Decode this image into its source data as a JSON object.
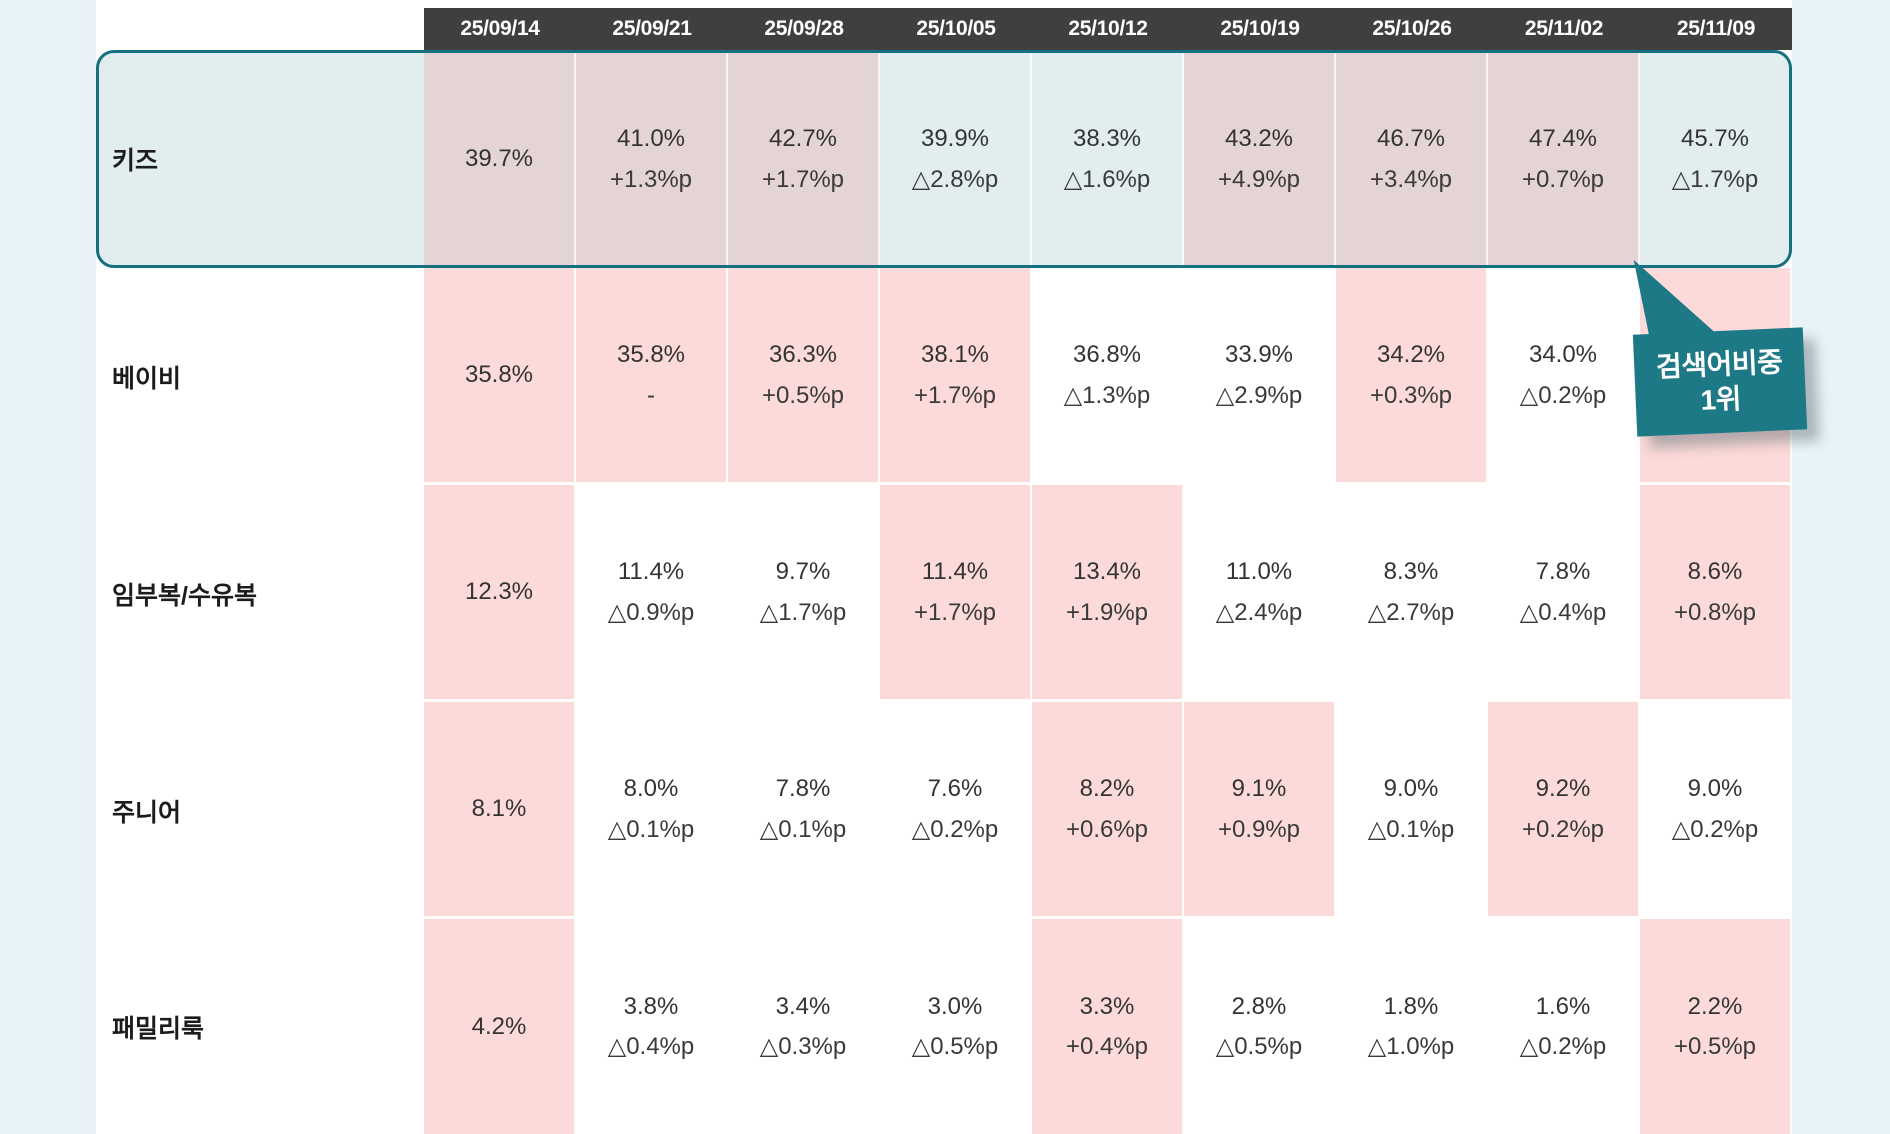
{
  "chart_data": {
    "type": "table",
    "columns": [
      "25/09/14",
      "25/09/21",
      "25/09/28",
      "25/10/05",
      "25/10/12",
      "25/10/19",
      "25/10/26",
      "25/11/02",
      "25/11/09"
    ],
    "rows": [
      {
        "label": "키즈",
        "emphasized_row": true,
        "cells": [
          {
            "value": "39.7%",
            "delta": "",
            "highlight": true
          },
          {
            "value": "41.0%",
            "delta": "+1.3%p",
            "highlight": true
          },
          {
            "value": "42.7%",
            "delta": "+1.7%p",
            "highlight": true
          },
          {
            "value": "39.9%",
            "delta": "△2.8%p",
            "highlight": false
          },
          {
            "value": "38.3%",
            "delta": "△1.6%p",
            "highlight": false
          },
          {
            "value": "43.2%",
            "delta": "+4.9%p",
            "highlight": true
          },
          {
            "value": "46.7%",
            "delta": "+3.4%p",
            "highlight": true
          },
          {
            "value": "47.4%",
            "delta": "+0.7%p",
            "highlight": true
          },
          {
            "value": "45.7%",
            "delta": "△1.7%p",
            "highlight": false
          }
        ]
      },
      {
        "label": "베이비",
        "emphasized_row": false,
        "cells": [
          {
            "value": "35.8%",
            "delta": "",
            "highlight": true
          },
          {
            "value": "35.8%",
            "delta": "-",
            "highlight": true
          },
          {
            "value": "36.3%",
            "delta": "+0.5%p",
            "highlight": true
          },
          {
            "value": "38.1%",
            "delta": "+1.7%p",
            "highlight": true
          },
          {
            "value": "36.8%",
            "delta": "△1.3%p",
            "highlight": false
          },
          {
            "value": "33.9%",
            "delta": "△2.9%p",
            "highlight": false
          },
          {
            "value": "34.2%",
            "delta": "+0.3%p",
            "highlight": true
          },
          {
            "value": "34.0%",
            "delta": "△0.2%p",
            "highlight": false
          },
          {
            "value": "",
            "delta": "",
            "highlight": true
          }
        ]
      },
      {
        "label": "임부복/수유복",
        "emphasized_row": false,
        "cells": [
          {
            "value": "12.3%",
            "delta": "",
            "highlight": true
          },
          {
            "value": "11.4%",
            "delta": "△0.9%p",
            "highlight": false
          },
          {
            "value": "9.7%",
            "delta": "△1.7%p",
            "highlight": false
          },
          {
            "value": "11.4%",
            "delta": "+1.7%p",
            "highlight": true
          },
          {
            "value": "13.4%",
            "delta": "+1.9%p",
            "highlight": true
          },
          {
            "value": "11.0%",
            "delta": "△2.4%p",
            "highlight": false
          },
          {
            "value": "8.3%",
            "delta": "△2.7%p",
            "highlight": false
          },
          {
            "value": "7.8%",
            "delta": "△0.4%p",
            "highlight": false
          },
          {
            "value": "8.6%",
            "delta": "+0.8%p",
            "highlight": true
          }
        ]
      },
      {
        "label": "주니어",
        "emphasized_row": false,
        "cells": [
          {
            "value": "8.1%",
            "delta": "",
            "highlight": true
          },
          {
            "value": "8.0%",
            "delta": "△0.1%p",
            "highlight": false
          },
          {
            "value": "7.8%",
            "delta": "△0.1%p",
            "highlight": false
          },
          {
            "value": "7.6%",
            "delta": "△0.2%p",
            "highlight": false
          },
          {
            "value": "8.2%",
            "delta": "+0.6%p",
            "highlight": true
          },
          {
            "value": "9.1%",
            "delta": "+0.9%p",
            "highlight": true
          },
          {
            "value": "9.0%",
            "delta": "△0.1%p",
            "highlight": false
          },
          {
            "value": "9.2%",
            "delta": "+0.2%p",
            "highlight": true
          },
          {
            "value": "9.0%",
            "delta": "△0.2%p",
            "highlight": false
          }
        ]
      },
      {
        "label": "패밀리룩",
        "emphasized_row": false,
        "cells": [
          {
            "value": "4.2%",
            "delta": "",
            "highlight": true
          },
          {
            "value": "3.8%",
            "delta": "△0.4%p",
            "highlight": false
          },
          {
            "value": "3.4%",
            "delta": "△0.3%p",
            "highlight": false
          },
          {
            "value": "3.0%",
            "delta": "△0.5%p",
            "highlight": false
          },
          {
            "value": "3.3%",
            "delta": "+0.4%p",
            "highlight": true
          },
          {
            "value": "2.8%",
            "delta": "△0.5%p",
            "highlight": false
          },
          {
            "value": "1.8%",
            "delta": "△1.0%p",
            "highlight": false
          },
          {
            "value": "1.6%",
            "delta": "△0.2%p",
            "highlight": false
          },
          {
            "value": "2.2%",
            "delta": "+0.5%p",
            "highlight": true
          }
        ]
      }
    ]
  },
  "badge": {
    "line1": "검색어비중",
    "line2": "1위"
  },
  "colors": {
    "header_bg": "#3f3f3f",
    "header_text": "#ffffff",
    "row1_bg": "#e2edf0",
    "row1_highlight": "#e4d4d6",
    "highlight_pink": "#fcdad9",
    "frame_teal": "#15707f",
    "badge_teal": "#1e7986",
    "page_bg": "#e8f3f8"
  }
}
